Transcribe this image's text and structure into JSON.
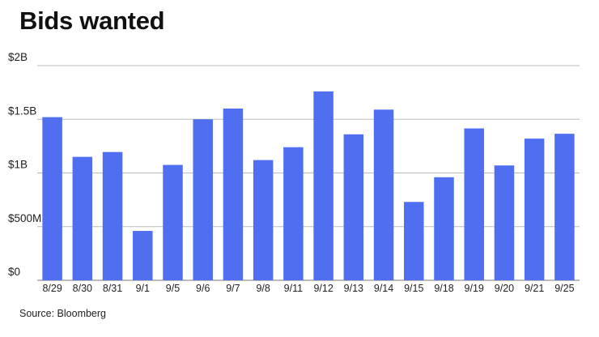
{
  "title": "Bids wanted",
  "source": "Source: Bloomberg",
  "chart_data": {
    "type": "bar",
    "title": "Bids wanted",
    "xlabel": "",
    "ylabel": "",
    "ylim": [
      0,
      2000
    ],
    "y_unit": "$M",
    "grid": true,
    "y_ticks": [
      0,
      500,
      1000,
      1500,
      2000
    ],
    "y_tick_labels": [
      "$0",
      "$500M",
      "$1B",
      "$1.5B",
      "$2B"
    ],
    "categories": [
      "8/29",
      "8/30",
      "8/31",
      "9/1",
      "9/5",
      "9/6",
      "9/7",
      "9/8",
      "9/11",
      "9/12",
      "9/13",
      "9/14",
      "9/15",
      "9/18",
      "9/19",
      "9/20",
      "9/21",
      "9/25"
    ],
    "values": [
      1520,
      1150,
      1195,
      460,
      1075,
      1500,
      1600,
      1120,
      1240,
      1760,
      1360,
      1590,
      730,
      960,
      1415,
      1070,
      1320,
      1365
    ],
    "bar_color": "#4f6ff0",
    "grid_color": "#bbbbbb",
    "axis_color": "#777777"
  }
}
